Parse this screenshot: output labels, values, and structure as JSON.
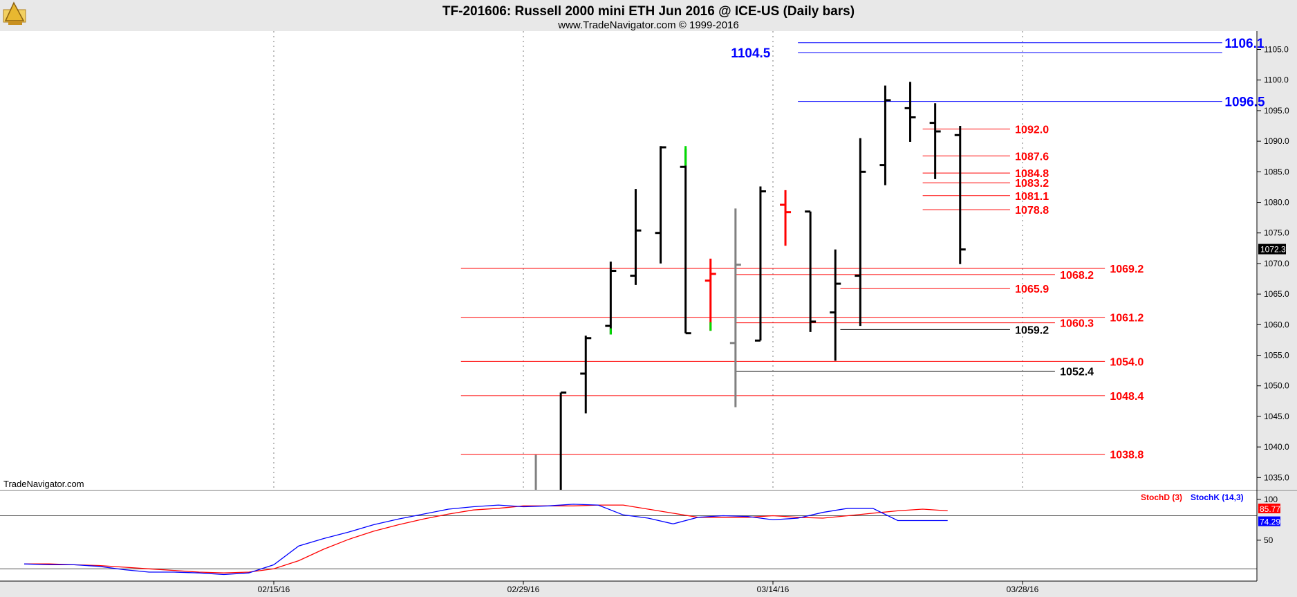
{
  "header": {
    "title": "TF-201606:  Russell 2000 mini ETH Jun 2016 @ ICE-US  (Daily bars)",
    "subtitle": "www.TradeNavigator.com © 1999-2016"
  },
  "watermark": "TradeNavigator.com",
  "colors": {
    "background": "#ffffff",
    "frame": "#e8e8e8",
    "up_bar": "#000000",
    "level_red": "#ff0000",
    "level_blue": "#0000ff",
    "level_black": "#000000",
    "green": "#00dd00",
    "gray": "#808080"
  },
  "chart_data": {
    "type": "ohlc",
    "price_axis": {
      "ylim": [
        1033,
        1108
      ],
      "ticks": [
        "1035.0",
        "1040.0",
        "1045.0",
        "1050.0",
        "1055.0",
        "1060.0",
        "1065.0",
        "1070.0",
        "1075.0",
        "1080.0",
        "1085.0",
        "1090.0",
        "1095.0",
        "1100.0",
        "1105.0"
      ],
      "last_price_label": "1072.3"
    },
    "date_axis": {
      "ticks": [
        {
          "label": "02/15/16",
          "index": 0
        },
        {
          "label": "02/29/16",
          "index": 10
        },
        {
          "label": "03/14/16",
          "index": 20
        },
        {
          "label": "03/28/16",
          "index": 30
        }
      ]
    },
    "bars": [
      {
        "i": 10.5,
        "o": null,
        "h": 1038.7,
        "l": 1033,
        "c": null,
        "color": "gray"
      },
      {
        "i": 11.5,
        "o": null,
        "h": 1048.9,
        "l": 1033,
        "c": 1048.9,
        "color": "black"
      },
      {
        "i": 12.5,
        "o": 1052.0,
        "h": 1058.2,
        "l": 1045.5,
        "c": 1057.8,
        "color": "black"
      },
      {
        "i": 13.5,
        "o": 1059.8,
        "h": 1070.3,
        "l": 1058.4,
        "c": 1068.8,
        "color": "black"
      },
      {
        "i": 14.5,
        "o": 1068.0,
        "h": 1082.2,
        "l": 1066.5,
        "c": 1075.4,
        "color": "black"
      },
      {
        "i": 15.5,
        "o": 1075.0,
        "h": 1089.2,
        "l": 1070.0,
        "c": 1089.0,
        "color": "black"
      },
      {
        "i": 16.5,
        "o": 1085.8,
        "h": 1088.8,
        "l": 1058.6,
        "c": 1058.6,
        "color": "black"
      },
      {
        "i": 17.5,
        "o": 1067.2,
        "h": 1070.8,
        "l": 1059.0,
        "c": 1068.3,
        "color": "red"
      },
      {
        "i": 18.5,
        "o": 1057.0,
        "h": 1079.0,
        "l": 1046.5,
        "c": 1069.8,
        "color": "gray"
      },
      {
        "i": 19.5,
        "o": 1057.4,
        "h": 1082.6,
        "l": 1057.4,
        "c": 1081.8,
        "color": "black"
      },
      {
        "i": 20.5,
        "o": 1079.6,
        "h": 1082.0,
        "l": 1072.9,
        "c": 1078.4,
        "color": "red"
      },
      {
        "i": 21.5,
        "o": 1078.5,
        "h": 1078.5,
        "l": 1058.8,
        "c": 1060.5,
        "color": "black"
      },
      {
        "i": 22.5,
        "o": 1062.0,
        "h": 1072.3,
        "l": 1054.1,
        "c": 1066.7,
        "color": "black"
      },
      {
        "i": 23.5,
        "o": 1068.0,
        "h": 1090.5,
        "l": 1059.8,
        "c": 1085.0,
        "color": "black"
      },
      {
        "i": 24.5,
        "o": 1086.1,
        "h": 1099.1,
        "l": 1082.8,
        "c": 1096.7,
        "color": "black"
      },
      {
        "i": 25.5,
        "o": 1095.4,
        "h": 1099.7,
        "l": 1089.9,
        "c": 1093.9,
        "color": "black"
      },
      {
        "i": 26.5,
        "o": 1093.0,
        "h": 1096.2,
        "l": 1083.8,
        "c": 1091.6,
        "color": "black"
      },
      {
        "i": 27.5,
        "o": 1091.0,
        "h": 1092.5,
        "l": 1069.9,
        "c": 1072.3,
        "color": "black"
      }
    ],
    "levels": [
      {
        "label": "1106.1",
        "value": 1106.1,
        "from": 21,
        "to": 38,
        "label_at": 38.1,
        "color": "blue",
        "big": true
      },
      {
        "label": "1104.5",
        "value": 1104.5,
        "from": 21,
        "to": 38,
        "label_at": 19.9,
        "color": "blue",
        "big": true,
        "label_left": true
      },
      {
        "label": "1096.5",
        "value": 1096.5,
        "from": 21,
        "to": 38,
        "label_at": 38.1,
        "color": "blue",
        "big": true
      },
      {
        "label": "1092.0",
        "value": 1092.0,
        "from": 26,
        "to": 29.5,
        "label_at": 29.7,
        "color": "red"
      },
      {
        "label": "1087.6",
        "value": 1087.6,
        "from": 26,
        "to": 29.5,
        "label_at": 29.7,
        "color": "red"
      },
      {
        "label": "1084.8",
        "value": 1084.8,
        "from": 26,
        "to": 29.5,
        "label_at": 29.7,
        "color": "red"
      },
      {
        "label": "1083.2",
        "value": 1083.2,
        "from": 26,
        "to": 29.5,
        "label_at": 29.7,
        "color": "red"
      },
      {
        "label": "1081.1",
        "value": 1081.1,
        "from": 26,
        "to": 29.5,
        "label_at": 29.7,
        "color": "red"
      },
      {
        "label": "1078.8",
        "value": 1078.8,
        "from": 26,
        "to": 29.5,
        "label_at": 29.7,
        "color": "red"
      },
      {
        "label": "1069.2",
        "value": 1069.2,
        "from": 7.5,
        "to": 33.3,
        "label_at": 33.5,
        "color": "red"
      },
      {
        "label": "1068.2",
        "value": 1068.2,
        "from": 18.5,
        "to": 31.3,
        "label_at": 31.5,
        "color": "red"
      },
      {
        "label": "1065.9",
        "value": 1065.9,
        "from": 22.7,
        "to": 29.5,
        "label_at": 29.7,
        "color": "red"
      },
      {
        "label": "1061.2",
        "value": 1061.2,
        "from": 7.5,
        "to": 33.3,
        "label_at": 33.5,
        "color": "red"
      },
      {
        "label": "1060.3",
        "value": 1060.3,
        "from": 18.5,
        "to": 31.3,
        "label_at": 31.5,
        "color": "red"
      },
      {
        "label": "1059.2",
        "value": 1059.2,
        "from": 22.7,
        "to": 29.5,
        "label_at": 29.7,
        "color": "black"
      },
      {
        "label": "1054.0",
        "value": 1054.0,
        "from": 7.5,
        "to": 33.3,
        "label_at": 33.5,
        "color": "red"
      },
      {
        "label": "1052.4",
        "value": 1052.4,
        "from": 18.5,
        "to": 31.3,
        "label_at": 31.5,
        "color": "black"
      },
      {
        "label": "1048.4",
        "value": 1048.4,
        "from": 7.5,
        "to": 33.3,
        "label_at": 33.5,
        "color": "red"
      },
      {
        "label": "1038.8",
        "value": 1038.8,
        "from": 7.5,
        "to": 33.3,
        "label_at": 33.5,
        "color": "red"
      }
    ],
    "stochastic": {
      "ylim": [
        0,
        110
      ],
      "ticks": [
        "50",
        "100"
      ],
      "reference_line": 80,
      "lower_line": 15,
      "legend": {
        "d": "StochD (3)",
        "k": "StochK (14,3)"
      },
      "d_value_label": "85.77",
      "k_value_label": "74.29",
      "index": [
        -10,
        -9,
        -8,
        -7,
        -6,
        -5,
        -4,
        -3,
        -2,
        -1,
        0,
        1,
        2,
        3,
        4,
        5,
        6,
        7,
        8,
        9,
        10,
        11,
        12,
        13,
        14,
        15,
        16,
        17,
        18,
        19,
        20,
        21,
        22,
        23,
        24,
        25,
        26,
        27
      ],
      "stoch_d": [
        21,
        21,
        20,
        19,
        17,
        15,
        13,
        11,
        10,
        11,
        15,
        25,
        39,
        51,
        61,
        69,
        76,
        82,
        87,
        89,
        92,
        92,
        92,
        93,
        93,
        88,
        83,
        78,
        78,
        78,
        80,
        78,
        77,
        80,
        83,
        86,
        88,
        86
      ],
      "stoch_k": [
        21,
        20,
        20,
        18,
        14,
        11,
        11,
        10,
        8,
        10,
        20,
        43,
        52,
        60,
        69,
        76,
        82,
        88,
        91,
        93,
        91,
        92,
        94,
        93,
        81,
        77,
        70,
        78,
        80,
        79,
        75,
        77,
        84,
        89,
        89,
        74,
        74,
        74
      ]
    }
  }
}
